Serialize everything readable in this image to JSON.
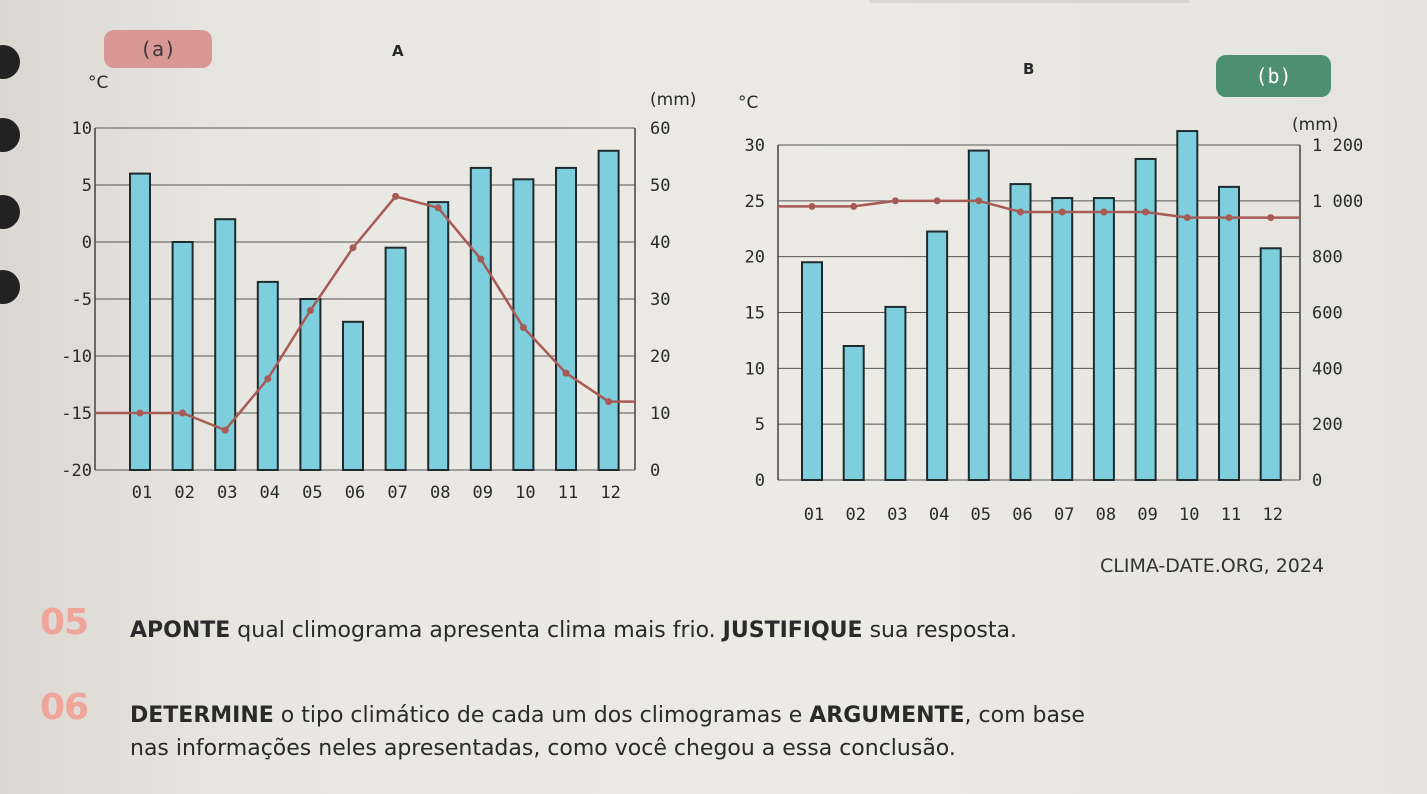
{
  "tabs": {
    "a": "(a)",
    "b": "(b)"
  },
  "letters": {
    "a": "A",
    "b": "B"
  },
  "source": "CLIMA-DATE.ORG, 2024",
  "questions": [
    {
      "number": "05",
      "bold1": "APONTE",
      "text1": " qual climograma apresenta clima mais frio. ",
      "bold2": "JUSTIFIQUE",
      "text2": " sua resposta."
    },
    {
      "number": "06",
      "bold1": "DETERMINE",
      "text1": " o tipo climático de cada um dos climogramas e ",
      "bold2": "ARGUMENTE",
      "text2": ", com base",
      "line2": "nas informações neles apresentadas, como você chegou a essa conclusão."
    }
  ],
  "chart_data": [
    {
      "type": "bar+line",
      "label": "A",
      "categories": [
        "01",
        "02",
        "03",
        "04",
        "05",
        "06",
        "07",
        "08",
        "09",
        "10",
        "11",
        "12"
      ],
      "left_unit": "°C",
      "right_unit": "(mm)",
      "temp_ticks": [
        "10",
        "5",
        "0",
        "-5",
        "-10",
        "-15",
        "-20"
      ],
      "precip_ticks": [
        "60",
        "50",
        "40",
        "30",
        "20",
        "10",
        "0"
      ],
      "temp_range": [
        -20,
        10
      ],
      "precip_range": [
        0,
        60
      ],
      "precipitation_mm": [
        52,
        40,
        44,
        33,
        30,
        26,
        39,
        47,
        53,
        51,
        53,
        56
      ],
      "temperature_c": [
        -15,
        -15,
        -16.5,
        -12,
        -6,
        -0.5,
        4,
        3,
        -1.5,
        -7.5,
        -11.5,
        -14
      ],
      "colors": {
        "bars": "#7ecfde",
        "line": "#a85a55"
      }
    },
    {
      "type": "bar+line",
      "label": "B",
      "categories": [
        "01",
        "02",
        "03",
        "04",
        "05",
        "06",
        "07",
        "08",
        "09",
        "10",
        "11",
        "12"
      ],
      "left_unit": "°C",
      "right_unit": "(mm)",
      "temp_ticks": [
        "30",
        "25",
        "20",
        "15",
        "10",
        "5",
        "0"
      ],
      "precip_ticks": [
        "1 200",
        "1 000",
        "800",
        "600",
        "400",
        "200",
        "0"
      ],
      "temp_range": [
        0,
        30
      ],
      "precip_range": [
        0,
        1200
      ],
      "precipitation_mm": [
        780,
        480,
        620,
        890,
        1180,
        1060,
        1010,
        1010,
        1150,
        1250,
        1050,
        830
      ],
      "temperature_c": [
        24.5,
        24.5,
        25,
        25,
        25,
        24,
        24,
        24,
        24,
        23.5,
        23.5,
        23.5
      ],
      "colors": {
        "bars": "#7ecfde",
        "line": "#a85a55"
      }
    }
  ]
}
